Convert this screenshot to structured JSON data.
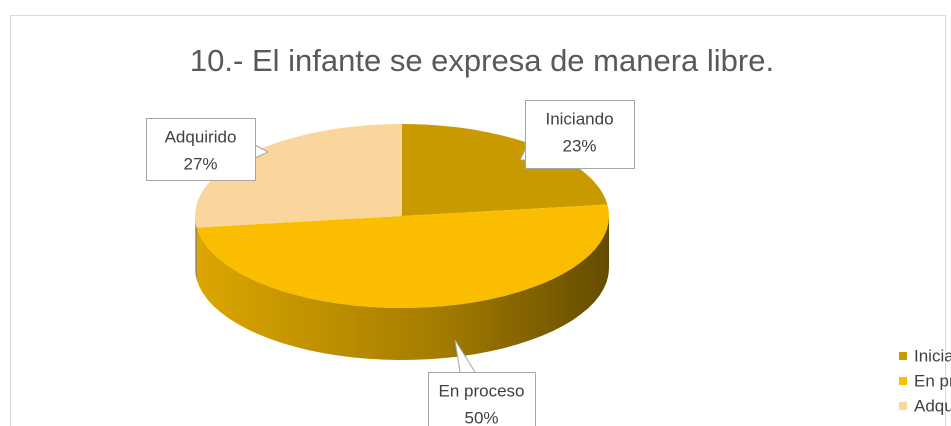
{
  "chart_data": {
    "type": "pie3d",
    "title": "10.- El infante se expresa de manera libre.",
    "categories": [
      "Iniciando",
      "En proceso",
      "Adquirido"
    ],
    "values": [
      23,
      50,
      27
    ],
    "value_labels": [
      "23%",
      "50%",
      "27%"
    ],
    "colors": [
      "#c99a00",
      "#fabd00",
      "#fad69c"
    ],
    "legend": "right"
  }
}
